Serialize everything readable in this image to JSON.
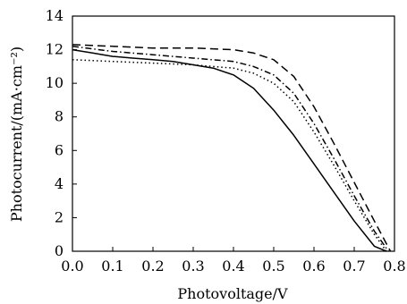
{
  "chart_data": {
    "type": "line",
    "title": "",
    "xlabel": "Photovoltage/V",
    "ylabel": "Photocurrent/(mA·cm⁻²)",
    "xlim": [
      0,
      0.8
    ],
    "ylim": [
      0,
      14
    ],
    "x_ticks": [
      "0.0",
      "0.1",
      "0.2",
      "0.3",
      "0.4",
      "0.5",
      "0.6",
      "0.7",
      "0.8"
    ],
    "y_ticks": [
      "0",
      "2",
      "4",
      "6",
      "8",
      "10",
      "12",
      "14"
    ],
    "grid": false,
    "legend": "none",
    "series": [
      {
        "style": "solid",
        "x": [
          0.0,
          0.05,
          0.1,
          0.15,
          0.2,
          0.25,
          0.3,
          0.35,
          0.4,
          0.45,
          0.5,
          0.55,
          0.6,
          0.65,
          0.7,
          0.75,
          0.78
        ],
        "y": [
          12.0,
          11.8,
          11.6,
          11.5,
          11.4,
          11.3,
          11.1,
          10.9,
          10.5,
          9.7,
          8.4,
          6.9,
          5.2,
          3.5,
          1.8,
          0.3,
          0.0
        ]
      },
      {
        "style": "dashed",
        "x": [
          0.0,
          0.1,
          0.2,
          0.3,
          0.4,
          0.45,
          0.5,
          0.55,
          0.6,
          0.65,
          0.7,
          0.75,
          0.79
        ],
        "y": [
          12.3,
          12.2,
          12.1,
          12.1,
          12.0,
          11.8,
          11.4,
          10.4,
          8.6,
          6.4,
          4.1,
          1.8,
          0.0
        ]
      },
      {
        "style": "dash-dot",
        "x": [
          0.0,
          0.1,
          0.2,
          0.3,
          0.4,
          0.45,
          0.5,
          0.55,
          0.6,
          0.65,
          0.7,
          0.75,
          0.785
        ],
        "y": [
          12.2,
          11.9,
          11.7,
          11.5,
          11.3,
          11.0,
          10.5,
          9.4,
          7.6,
          5.5,
          3.3,
          1.2,
          0.0
        ]
      },
      {
        "style": "dotted",
        "x": [
          0.0,
          0.1,
          0.2,
          0.3,
          0.4,
          0.45,
          0.5,
          0.55,
          0.6,
          0.65,
          0.7,
          0.75,
          0.78
        ],
        "y": [
          11.4,
          11.3,
          11.2,
          11.1,
          10.9,
          10.6,
          10.0,
          8.9,
          7.1,
          5.1,
          3.0,
          1.0,
          0.0
        ]
      }
    ]
  }
}
